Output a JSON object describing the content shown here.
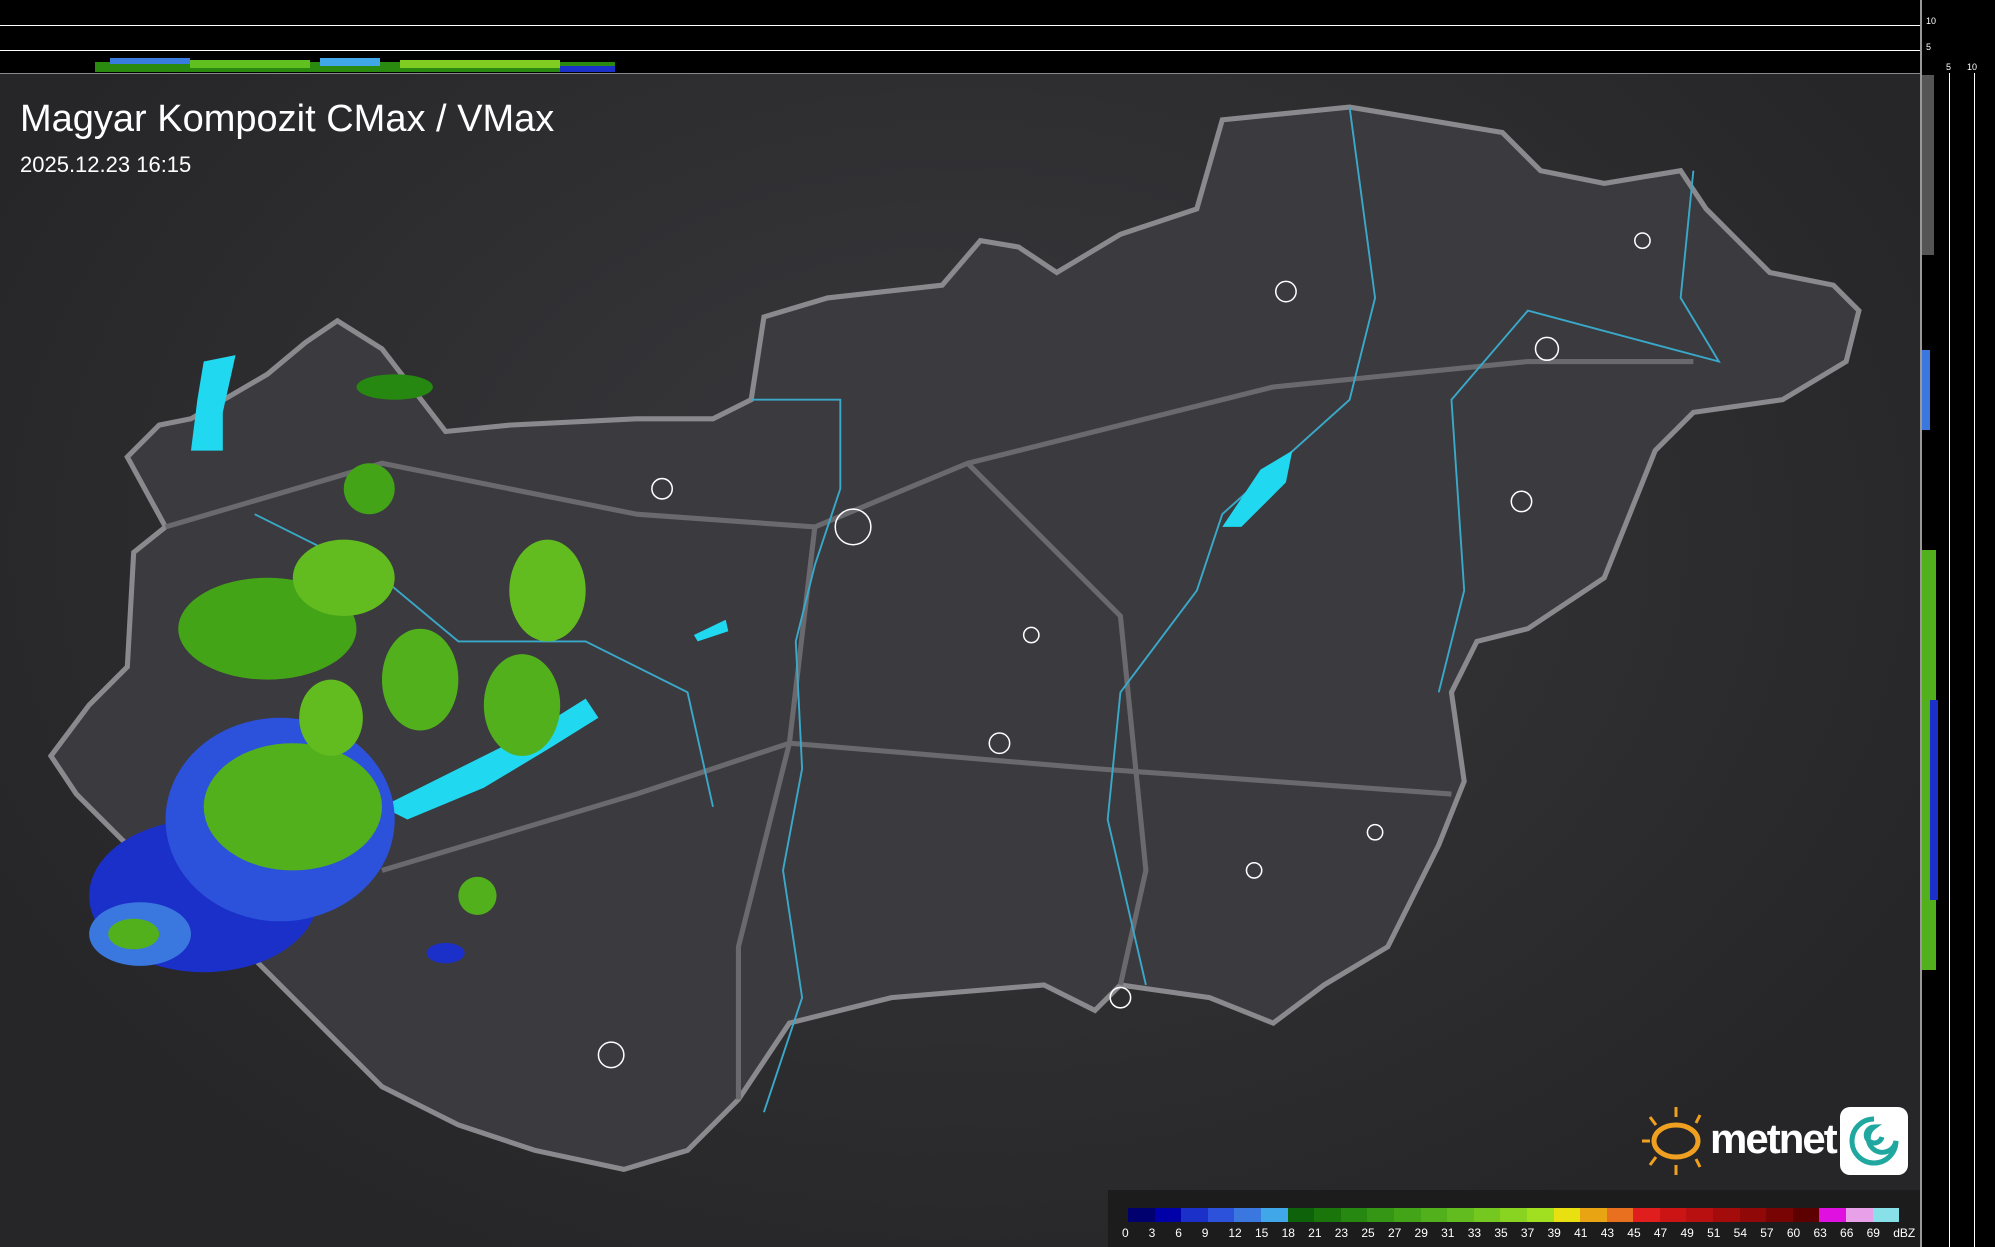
{
  "title": "Magyar Kompozit CMax / VMax",
  "datetime": "2025.12.23 16:15",
  "side_axis": {
    "top_ticks": [
      "10",
      "5"
    ],
    "right_ticks": [
      "5",
      "10"
    ]
  },
  "logo": {
    "text": "metnet",
    "icon": "sun-icon"
  },
  "legend": {
    "unit": "dBZ",
    "labels": [
      "0",
      "3",
      "6",
      "9",
      "12",
      "15",
      "18",
      "21",
      "23",
      "25",
      "27",
      "29",
      "31",
      "33",
      "35",
      "37",
      "39",
      "41",
      "43",
      "45",
      "47",
      "49",
      "51",
      "54",
      "57",
      "60",
      "63",
      "66",
      "69"
    ],
    "colors": [
      "#00006e",
      "#0000a8",
      "#1a30c8",
      "#2c52dc",
      "#3a78e0",
      "#40a8e8",
      "#0e620a",
      "#1a760a",
      "#268810",
      "#349614",
      "#44a418",
      "#52b01c",
      "#62bc20",
      "#74c820",
      "#88d420",
      "#a0e020",
      "#e8e010",
      "#e8a412",
      "#e8701e",
      "#e01e1e",
      "#cc1414",
      "#b81010",
      "#a40c0c",
      "#900808",
      "#780404",
      "#5c0000",
      "#e010e0",
      "#e8a0e8",
      "#88e0e8"
    ]
  },
  "colors": {
    "border": "#8a8a8e",
    "river": "#3aa8c8",
    "lake": "#20d8f0",
    "city": "#ffffff"
  }
}
